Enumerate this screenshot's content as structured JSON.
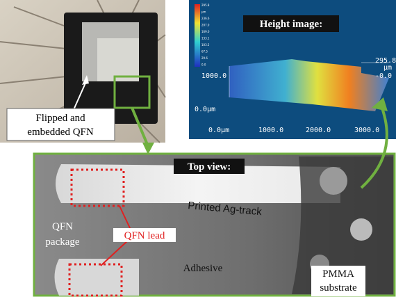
{
  "top_left_photo": {
    "label": [
      "Flipped and",
      "embedded QFN"
    ]
  },
  "height_image": {
    "title": "Height image:",
    "colorbar_labels": [
      "295.8",
      "µm",
      "236.6",
      "207.0",
      "169.0",
      "133.1",
      "103.5",
      "67.5",
      "29.6",
      "0.0"
    ],
    "z_labels": [
      "295.8",
      "µm",
      "-0.0"
    ],
    "y_labels": [
      "1000.0",
      "0.0µm"
    ],
    "x_labels": [
      "0.0µm",
      "1000.0",
      "2000.0",
      "3000.0"
    ],
    "y_right_label": "-0.0"
  },
  "top_view": {
    "title": "Top view:",
    "track_label": "Printed Ag-track",
    "package_label": [
      "QFN",
      "package"
    ],
    "lead_label": "QFN lead",
    "adhesive_label": "Adhesive",
    "substrate_label": [
      "PMMA",
      "substrate"
    ]
  }
}
